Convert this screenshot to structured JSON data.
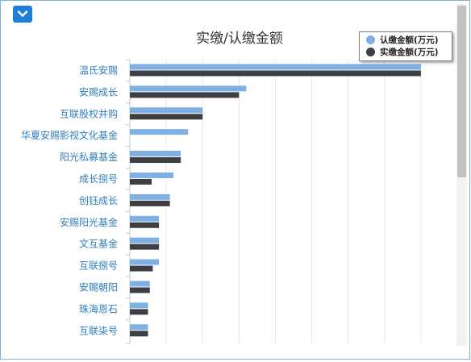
{
  "toolbar": {
    "collapse_icon": "chevron-down-icon"
  },
  "colors": {
    "subscribed": "#7eb0e6",
    "paid": "#3d3f44",
    "accent": "#1e7fd8",
    "label": "#2f7fba"
  },
  "chart_data": {
    "type": "bar",
    "orientation": "horizontal",
    "title": "实缴/认缴金额",
    "categories": [
      "温氏安赐",
      "安赐成长",
      "互联股权并购",
      "华夏安赐影视文化基金",
      "阳光私募基金",
      "成长捌号",
      "创钰成长",
      "安赐阳光基金",
      "文互基金",
      "互联捌号",
      "安赐朝阳",
      "珠海恩石",
      "互联柒号"
    ],
    "series": [
      {
        "name": "认缴金额(万元)",
        "values": [
          80000,
          32000,
          20000,
          16000,
          14000,
          12000,
          11000,
          8000,
          8000,
          8000,
          5500,
          5000,
          5000
        ]
      },
      {
        "name": "实缴金额(万元)",
        "values": [
          80000,
          30000,
          20000,
          0,
          14000,
          6000,
          11000,
          8000,
          8000,
          6300,
          5500,
          5000,
          5000
        ]
      }
    ],
    "xlim": [
      0,
      90000
    ],
    "grid": true,
    "legend_position": "top-right"
  }
}
